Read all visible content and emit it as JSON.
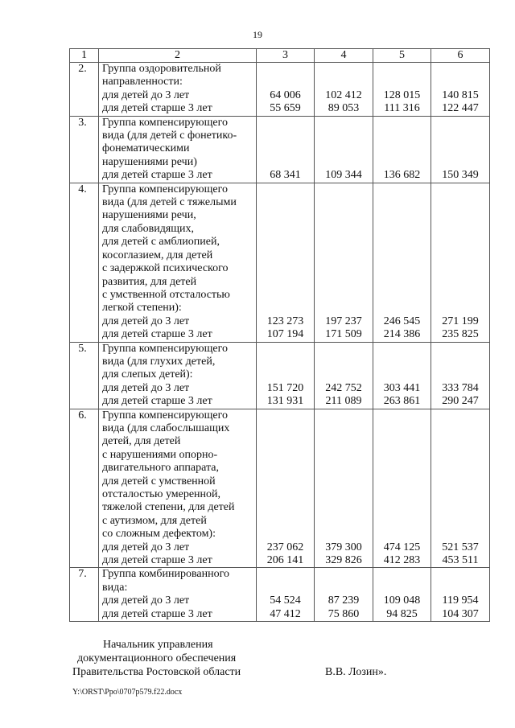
{
  "page_number": "19",
  "table": {
    "header": [
      "1",
      "2",
      "3",
      "4",
      "5",
      "6"
    ],
    "rows": [
      {
        "num": "2.",
        "lines": [
          "Группа оздоровительной",
          "направленности:",
          "для детей до 3 лет",
          "для детей старше 3 лет"
        ],
        "values": [
          [
            "64 006",
            "55 659"
          ],
          [
            "102 412",
            "89 053"
          ],
          [
            "128 015",
            "111 316"
          ],
          [
            "140 815",
            "122 447"
          ]
        ]
      },
      {
        "num": "3.",
        "lines": [
          "Группа компенсирующего",
          "вида (для детей с фонетико-",
          "фонематическими",
          "нарушениями речи)",
          "для детей старше 3 лет"
        ],
        "values": [
          [
            "68 341"
          ],
          [
            "109 344"
          ],
          [
            "136 682"
          ],
          [
            "150 349"
          ]
        ]
      },
      {
        "num": "4.",
        "lines": [
          "Группа компенсирующего",
          "вида (для детей с тяжелыми",
          "нарушениями речи,",
          "для слабовидящих,",
          "для детей с амблиопией,",
          "косоглазием, для детей",
          "с задержкой психического",
          "развития, для детей",
          "с умственной отсталостью",
          "легкой степени):",
          "для детей до 3 лет",
          "для детей старше 3 лет"
        ],
        "values": [
          [
            "123 273",
            "107 194"
          ],
          [
            "197 237",
            "171 509"
          ],
          [
            "246 545",
            "214 386"
          ],
          [
            "271 199",
            "235 825"
          ]
        ]
      },
      {
        "num": "5.",
        "lines": [
          "Группа компенсирующего",
          "вида (для глухих детей,",
          "для слепых детей):",
          "для детей до 3 лет",
          "для детей старше 3 лет"
        ],
        "values": [
          [
            "151 720",
            "131 931"
          ],
          [
            "242 752",
            "211 089"
          ],
          [
            "303 441",
            "263 861"
          ],
          [
            "333 784",
            "290 247"
          ]
        ]
      },
      {
        "num": "6.",
        "lines": [
          "Группа компенсирующего",
          "вида (для слабослышащих",
          "детей, для детей",
          "с нарушениями опорно-",
          "двигательного аппарата,",
          "для детей с умственной",
          "отсталостью умеренной,",
          "тяжелой степени, для детей",
          "с аутизмом, для детей",
          "со сложным дефектом):",
          "для детей до 3 лет",
          "для детей старше 3 лет"
        ],
        "values": [
          [
            "237 062",
            "206 141"
          ],
          [
            "379 300",
            "329 826"
          ],
          [
            "474 125",
            "412 283"
          ],
          [
            "521 537",
            "453 511"
          ]
        ]
      },
      {
        "num": "7.",
        "lines": [
          "Группа комбинированного",
          "вида:",
          "для детей до 3 лет",
          "для детей старше 3 лет"
        ],
        "values": [
          [
            "54 524",
            "47 412"
          ],
          [
            "87 239",
            "75 860"
          ],
          [
            "109 048",
            "94 825"
          ],
          [
            "119 954",
            "104 307"
          ]
        ]
      }
    ]
  },
  "signature": {
    "line1": "Начальник управления",
    "line2": "документационного обеспечения",
    "line3": "Правительства Ростовской области",
    "name": "В.В. Лозин»."
  },
  "file_path": "Y:\\ORST\\Ppo\\0707p579.f22.docx"
}
